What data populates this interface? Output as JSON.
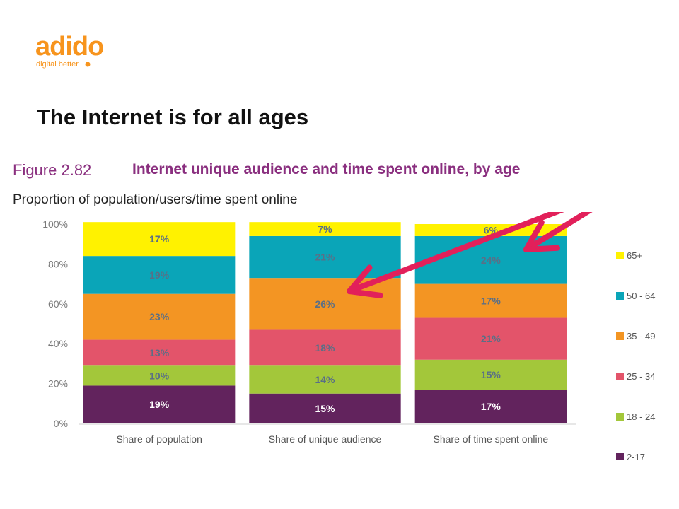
{
  "logo": {
    "brand": "adido",
    "tagline": "digital better"
  },
  "slide": {
    "title": "The Internet is for all ages"
  },
  "figure": {
    "label": "Figure 2.82",
    "title": "Internet unique audience and time spent online, by age",
    "subtitle": "Proportion of population/users/time spent online"
  },
  "colors": {
    "2-17": "#62235d",
    "18 - 24": "#a3c73a",
    "25 - 34": "#e3546a",
    "35 - 49": "#f39523",
    "50 - 64": "#0aa5b8",
    "65+": "#fff200",
    "arrow": "#e2205a",
    "brand_orange": "#f7941d",
    "brand_yellow": "#f2b705"
  },
  "chart_data": {
    "type": "bar",
    "stacked": true,
    "categories": [
      "Share of population",
      "Share of unique audience",
      "Share of time spent online"
    ],
    "series": [
      {
        "name": "2-17",
        "values": [
          19,
          15,
          17
        ]
      },
      {
        "name": "18 - 24",
        "values": [
          10,
          14,
          15
        ]
      },
      {
        "name": "25 - 34",
        "values": [
          13,
          18,
          21
        ]
      },
      {
        "name": "35 - 49",
        "values": [
          23,
          26,
          17
        ]
      },
      {
        "name": "50 - 64",
        "values": [
          19,
          21,
          24
        ]
      },
      {
        "name": "65+",
        "values": [
          17,
          7,
          6
        ]
      }
    ],
    "ylim": [
      0,
      100
    ],
    "yticks": [
      "0%",
      "20%",
      "40%",
      "60%",
      "80%",
      "100%"
    ],
    "legend_position": "right",
    "grid": false,
    "annotations": [
      "two red arrows from top-right pointing into the 35 - 49 segment of the middle bar and the 50 - 64 segment of the right bar"
    ]
  }
}
